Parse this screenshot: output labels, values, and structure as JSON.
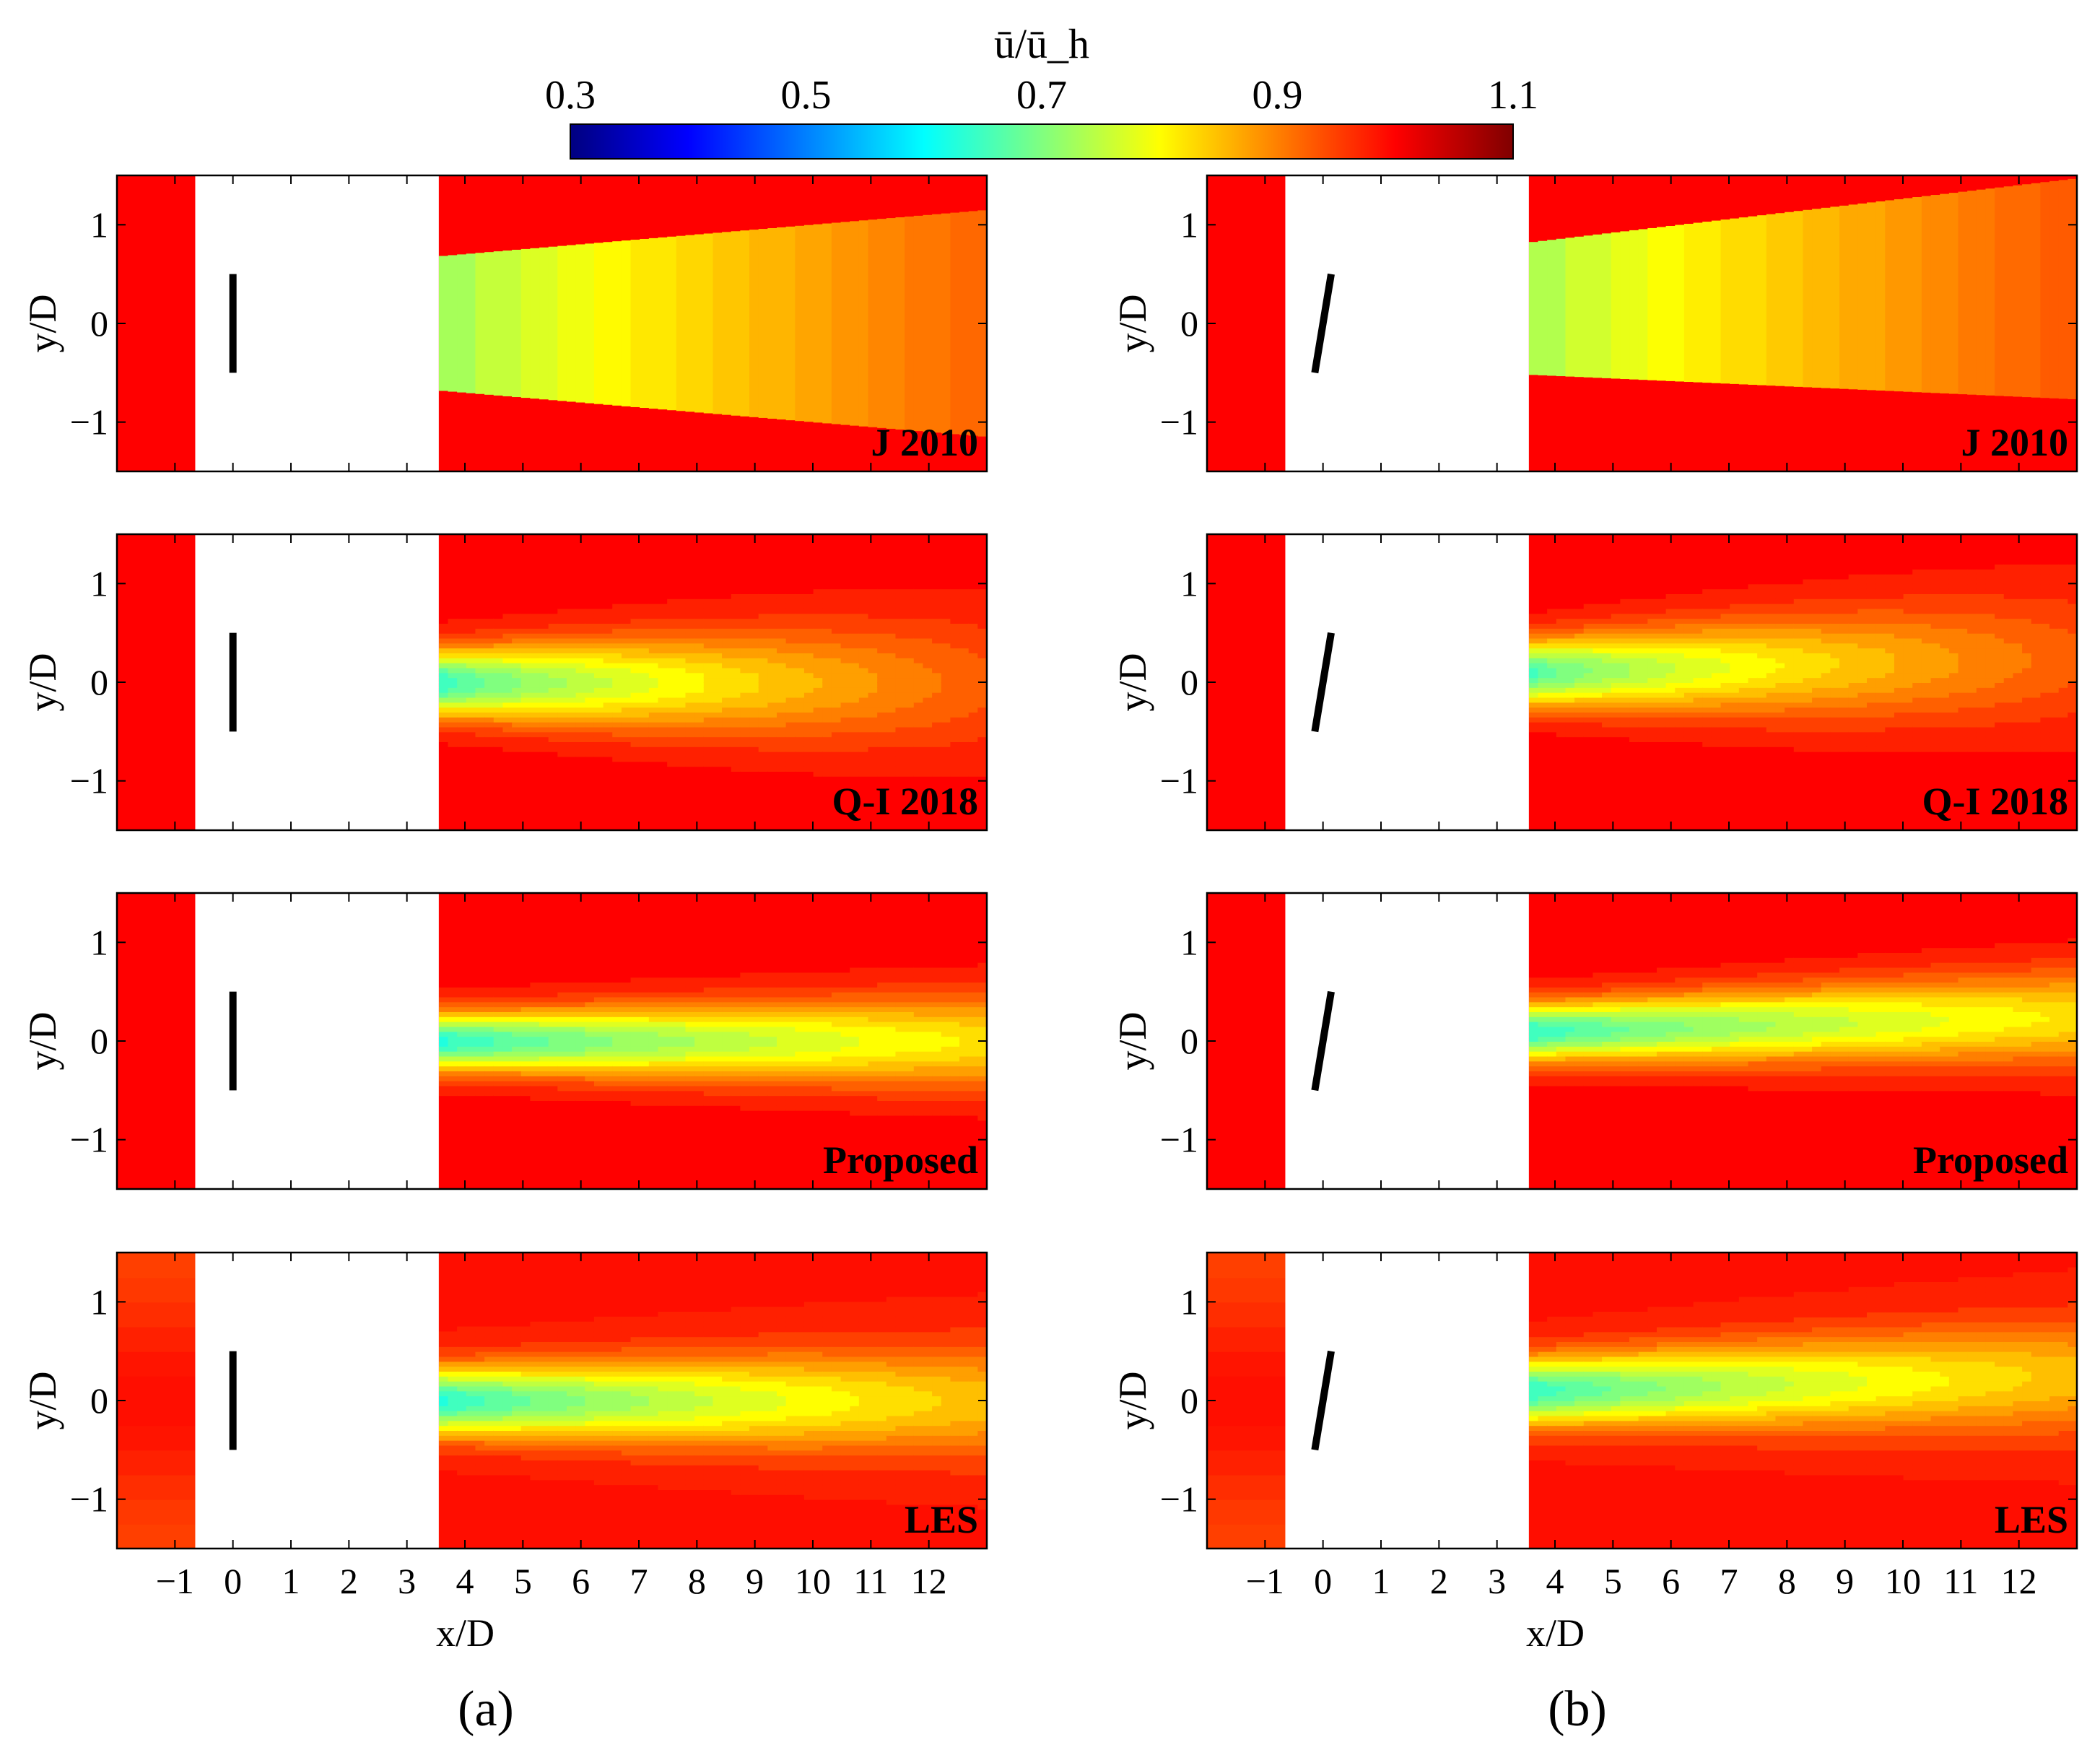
{
  "chart_data": [
    {
      "type": "heatmap",
      "subfigure": "(a)",
      "colorbar": {
        "title": "ū/ū_h",
        "range": [
          0.3,
          1.1
        ],
        "ticks": [
          "0.3",
          "0.5",
          "0.7",
          "0.9",
          "1.1"
        ],
        "colormap": "jet"
      },
      "xlabel": "x/D",
      "ylabel": "y/D",
      "xlim": [
        -2,
        13
      ],
      "ylim": [
        -1.5,
        1.5
      ],
      "xticks": [
        "−1",
        "0",
        "1",
        "2",
        "3",
        "4",
        "5",
        "6",
        "7",
        "8",
        "9",
        "10",
        "11",
        "12"
      ],
      "yticks": [
        "1",
        "0",
        "−1"
      ],
      "blank_region_x": [
        -0.65,
        3.55
      ],
      "turbine": {
        "x": 0,
        "y_half": 0.5,
        "yaw_deg": 0
      },
      "panels": [
        {
          "label": "J 2010",
          "model": "tophat",
          "wake_center": 0,
          "u_min_near": 0.73,
          "u_min_far": 0.93,
          "wake_halfwidth_start": 0.68,
          "wake_halfwidth_end": 1.15,
          "edge_value": 1.0
        },
        {
          "label": "Q-I 2018",
          "model": "gaussian_fast",
          "wake_center": 0,
          "u_min_near": 0.63,
          "u_min_far": 0.93,
          "wake_halfwidth_start": 0.35,
          "wake_halfwidth_end": 0.75,
          "edge_value": 1.0
        },
        {
          "label": "Proposed",
          "model": "gaussian",
          "wake_center": 0,
          "u_min_near": 0.62,
          "u_min_far": 0.82,
          "wake_halfwidth_start": 0.3,
          "wake_halfwidth_end": 0.5,
          "edge_value": 1.0
        },
        {
          "label": "LES",
          "model": "gaussian_les",
          "wake_center": 0,
          "u_min_near": 0.62,
          "u_min_far": 0.85,
          "wake_halfwidth_start": 0.35,
          "wake_halfwidth_end": 0.6,
          "edge_value": 0.99
        }
      ]
    },
    {
      "type": "heatmap",
      "subfigure": "(b)",
      "xlabel": "x/D",
      "ylabel": "y/D",
      "xlim": [
        -2,
        13
      ],
      "ylim": [
        -1.5,
        1.5
      ],
      "xticks": [
        "−1",
        "0",
        "1",
        "2",
        "3",
        "4",
        "5",
        "6",
        "7",
        "8",
        "9",
        "10",
        "11",
        "12"
      ],
      "yticks": [
        "1",
        "0",
        "−1"
      ],
      "blank_region_x": [
        -0.65,
        3.55
      ],
      "turbine": {
        "x": 0,
        "y_half": 0.5,
        "yaw_deg": 10
      },
      "panels": [
        {
          "label": "J 2010",
          "model": "tophat",
          "wake_center_start": 0.15,
          "wake_center_end": 0.35,
          "u_min_near": 0.74,
          "u_min_far": 0.94,
          "wake_halfwidth_start": 0.67,
          "wake_halfwidth_end": 1.12,
          "edge_value": 1.0
        },
        {
          "label": "Q-I 2018",
          "model": "gaussian_fast",
          "wake_center_start": 0.1,
          "wake_center_end": 0.25,
          "u_min_near": 0.65,
          "u_min_far": 0.93,
          "wake_halfwidth_start": 0.35,
          "wake_halfwidth_end": 0.75,
          "edge_value": 1.0
        },
        {
          "label": "Proposed",
          "model": "gaussian",
          "wake_center_start": 0.1,
          "wake_center_end": 0.25,
          "u_min_near": 0.63,
          "u_min_far": 0.82,
          "wake_halfwidth_start": 0.3,
          "wake_halfwidth_end": 0.5,
          "edge_value": 1.0
        },
        {
          "label": "LES",
          "model": "gaussian_les",
          "wake_center_start": 0.1,
          "wake_center_end": 0.25,
          "u_min_near": 0.63,
          "u_min_far": 0.85,
          "wake_halfwidth_start": 0.35,
          "wake_halfwidth_end": 0.6,
          "edge_value": 0.99
        }
      ]
    }
  ]
}
